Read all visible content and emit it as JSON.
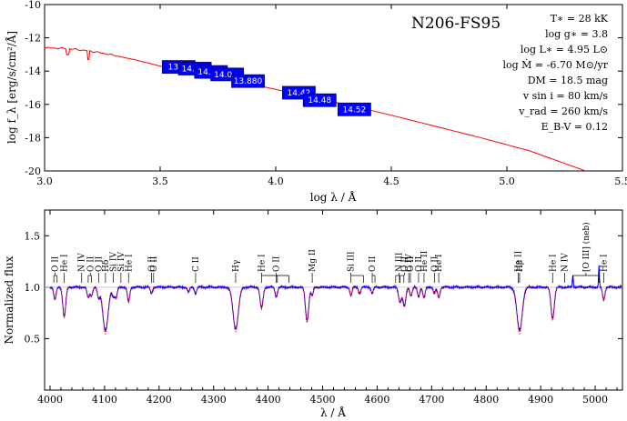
{
  "chart_data": [
    {
      "type": "line",
      "title": "N206-FS95",
      "xlabel": "log λ / Å",
      "ylabel": "log f_λ [erg/s/cm²/Å]",
      "xlim": [
        3.0,
        5.5
      ],
      "ylim": [
        -20,
        -10
      ],
      "x_ticks": [
        3.0,
        3.5,
        4.0,
        4.5,
        5.0,
        5.5
      ],
      "y_ticks": [
        -20,
        -18,
        -16,
        -14,
        -12,
        -10
      ],
      "x_tick_labels": [
        "3.0",
        "3.5",
        "4.0",
        "4.5",
        "5.0",
        "5.5"
      ],
      "y_tick_labels": [
        "-20",
        "-18",
        "-16",
        "-14",
        "-12",
        "-10"
      ],
      "series": [
        {
          "color": "#ff0000",
          "x": [
            3.0,
            3.05,
            3.1,
            3.15,
            3.2,
            3.3,
            3.4,
            3.5,
            3.6,
            3.7,
            3.8,
            3.9,
            4.0,
            4.1,
            4.2,
            4.3,
            4.5,
            4.7,
            4.9,
            5.1,
            5.34
          ],
          "y": [
            -12.6,
            -12.62,
            -12.65,
            -12.72,
            -12.8,
            -13.05,
            -13.35,
            -13.7,
            -13.95,
            -14.2,
            -14.5,
            -14.8,
            -15.1,
            -15.4,
            -15.7,
            -16.0,
            -16.65,
            -17.35,
            -18.05,
            -18.8,
            -20.0
          ]
        }
      ],
      "photometry": [
        {
          "x": 3.58,
          "y": -13.75,
          "label": "13.…"
        },
        {
          "x": 3.65,
          "y": -13.85,
          "label": "14.0…"
        },
        {
          "x": 3.72,
          "y": -14.05,
          "label": "14.0…"
        },
        {
          "x": 3.79,
          "y": -14.2,
          "label": "14.0…"
        },
        {
          "x": 3.88,
          "y": -14.6,
          "label": "13.880"
        },
        {
          "x": 4.1,
          "y": -15.3,
          "label": "14.42"
        },
        {
          "x": 4.19,
          "y": -15.75,
          "label": "14.48"
        },
        {
          "x": 4.34,
          "y": -16.3,
          "label": "14.52"
        }
      ],
      "parameters": [
        "T∗ = 28 kK",
        "log g∗ = 3.8",
        "log L∗ = 4.95 L⊙",
        "log Ṁ = -6.70 M⊙/yr",
        "DM = 18.5 mag",
        "v sin i = 80 km/s",
        "v_rad = 260 km/s",
        "E_B-V = 0.12"
      ]
    },
    {
      "type": "line",
      "xlabel": "λ / Å",
      "ylabel": "Normalized flux",
      "xlim": [
        3990,
        5050
      ],
      "ylim": [
        0.0,
        1.75
      ],
      "x_ticks": [
        4000,
        4100,
        4200,
        4300,
        4400,
        4500,
        4600,
        4700,
        4800,
        4900,
        5000
      ],
      "y_ticks": [
        0.5,
        1.0,
        1.5
      ],
      "x_tick_labels": [
        "4000",
        "4100",
        "4200",
        "4300",
        "4400",
        "4500",
        "4600",
        "4700",
        "4800",
        "4900",
        "5000"
      ],
      "y_tick_labels": [
        "0.5",
        "1.0",
        "1.5"
      ],
      "continuum": 1.0,
      "observed_color": "#0000ff",
      "model_color": "#ff0000",
      "absorption_lines": [
        {
          "x": 4009,
          "depth": 0.12,
          "width": 2.0
        },
        {
          "x": 4026,
          "depth": 0.28,
          "width": 2.5
        },
        {
          "x": 4070,
          "depth": 0.1,
          "width": 2.0
        },
        {
          "x": 4076,
          "depth": 0.08,
          "width": 2.0
        },
        {
          "x": 4089,
          "depth": 0.1,
          "width": 2.0
        },
        {
          "x": 4101.7,
          "depth": 0.42,
          "width": 4.5
        },
        {
          "x": 4116,
          "depth": 0.08,
          "width": 2.0
        },
        {
          "x": 4121,
          "depth": 0.1,
          "width": 2.0
        },
        {
          "x": 4144,
          "depth": 0.14,
          "width": 2.0
        },
        {
          "x": 4186,
          "depth": 0.06,
          "width": 1.8
        },
        {
          "x": 4254,
          "depth": 0.05,
          "width": 1.8
        },
        {
          "x": 4267,
          "depth": 0.06,
          "width": 1.8
        },
        {
          "x": 4340.5,
          "depth": 0.4,
          "width": 4.5
        },
        {
          "x": 4388,
          "depth": 0.2,
          "width": 2.5
        },
        {
          "x": 4415,
          "depth": 0.09,
          "width": 2.0
        },
        {
          "x": 4471.5,
          "depth": 0.32,
          "width": 2.8
        },
        {
          "x": 4481,
          "depth": 0.08,
          "width": 1.8
        },
        {
          "x": 4552,
          "depth": 0.08,
          "width": 1.8
        },
        {
          "x": 4568,
          "depth": 0.06,
          "width": 1.8
        },
        {
          "x": 4591,
          "depth": 0.06,
          "width": 1.8
        },
        {
          "x": 4642,
          "depth": 0.14,
          "width": 2.5
        },
        {
          "x": 4650,
          "depth": 0.18,
          "width": 2.5
        },
        {
          "x": 4662,
          "depth": 0.08,
          "width": 2.0
        },
        {
          "x": 4676,
          "depth": 0.09,
          "width": 2.0
        },
        {
          "x": 4686,
          "depth": 0.1,
          "width": 2.0
        },
        {
          "x": 4705,
          "depth": 0.06,
          "width": 1.8
        },
        {
          "x": 4713,
          "depth": 0.1,
          "width": 2.0
        },
        {
          "x": 4861.3,
          "depth": 0.42,
          "width": 4.5
        },
        {
          "x": 4921.9,
          "depth": 0.3,
          "width": 2.8
        },
        {
          "x": 5015.7,
          "depth": 0.12,
          "width": 2.0
        }
      ],
      "emission_lines": [
        {
          "x": 4959,
          "height": 0.12,
          "width": 0.8
        },
        {
          "x": 5007,
          "height": 0.2,
          "width": 0.8
        }
      ],
      "line_ids": [
        {
          "x": 4009,
          "label": "O II",
          "ticks": [
            4007,
            4013
          ]
        },
        {
          "x": 4026,
          "label": "He I",
          "ticks": [
            4026
          ]
        },
        {
          "x": 4058,
          "label": "N IV",
          "ticks": [
            4058
          ]
        },
        {
          "x": 4074,
          "label": "O II",
          "ticks": [
            4070,
            4076
          ]
        },
        {
          "x": 4089,
          "label": "O II",
          "ticks": [
            4089
          ]
        },
        {
          "x": 4116,
          "label": "Si IV",
          "ticks": [
            4116
          ]
        },
        {
          "x": 4101.7,
          "label": "Hδ",
          "ticks": [
            4101.7
          ]
        },
        {
          "x": 4130,
          "label": "Si IV",
          "ticks": [
            4130
          ]
        },
        {
          "x": 4144,
          "label": "He I",
          "ticks": [
            4144
          ]
        },
        {
          "x": 4186,
          "label": "O II",
          "ticks": [
            4186
          ]
        },
        {
          "x": 4190,
          "label": "O II",
          "ticks": [
            4190
          ]
        },
        {
          "x": 4267,
          "label": "C II",
          "ticks": [
            4267
          ]
        },
        {
          "x": 4340.5,
          "label": "Hγ",
          "ticks": [
            4340.5
          ]
        },
        {
          "x": 4388,
          "label": "He I",
          "ticks": [
            4388,
            4438
          ]
        },
        {
          "x": 4415,
          "label": "O II",
          "ticks": [
            4415,
            4417
          ]
        },
        {
          "x": 4481,
          "label": "Mg II",
          "ticks": [
            4481
          ]
        },
        {
          "x": 4552,
          "label": "Si III",
          "ticks": [
            4552,
            4575
          ]
        },
        {
          "x": 4591,
          "label": "O II",
          "ticks": [
            4591,
            4596
          ]
        },
        {
          "x": 4640,
          "label": "N III",
          "ticks": [
            4634,
            4641
          ]
        },
        {
          "x": 4650,
          "label": "O II",
          "ticks": [
            4642,
            4649
          ]
        },
        {
          "x": 4661,
          "label": "O II",
          "ticks": [
            4661
          ]
        },
        {
          "x": 4658,
          "label": "C IV",
          "ticks": [
            4658
          ]
        },
        {
          "x": 4676,
          "label": "O II",
          "ticks": [
            4676
          ]
        },
        {
          "x": 4686,
          "label": "He II",
          "ticks": [
            4686
          ]
        },
        {
          "x": 4705,
          "label": "O II",
          "ticks": [
            4705
          ]
        },
        {
          "x": 4713,
          "label": "He I",
          "ticks": [
            4713
          ]
        },
        {
          "x": 4859,
          "label": "He II",
          "ticks": [
            4859
          ]
        },
        {
          "x": 4861.3,
          "label": "Hβ",
          "ticks": [
            4861.3
          ]
        },
        {
          "x": 4921.9,
          "label": "He I",
          "ticks": [
            4921.9
          ]
        },
        {
          "x": 4944,
          "label": "N IV",
          "ticks": [
            4944
          ]
        },
        {
          "x": 4983,
          "label": "[O III] (neb)",
          "ticks": [
            4959,
            5007
          ]
        },
        {
          "x": 5015.7,
          "label": "He I",
          "ticks": [
            5015.7
          ]
        }
      ]
    }
  ]
}
